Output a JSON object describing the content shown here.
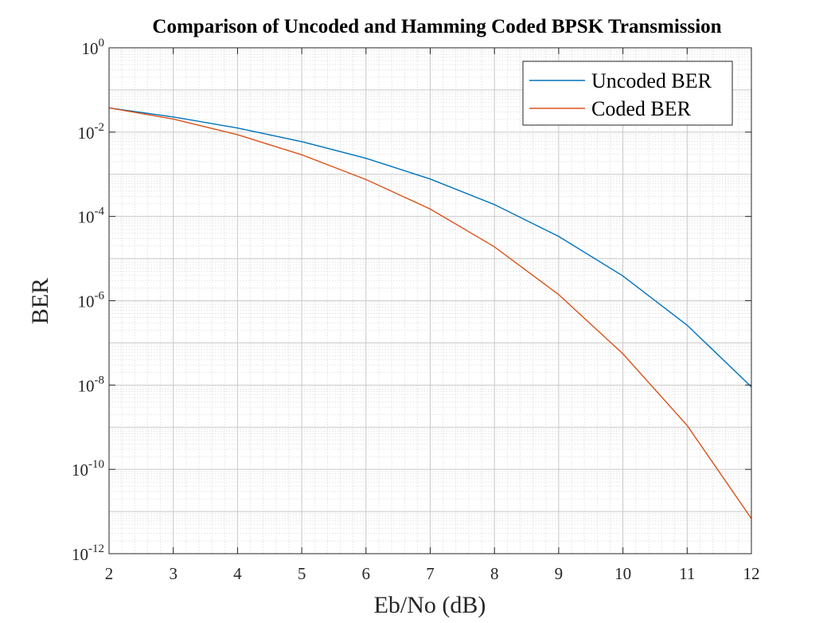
{
  "chart_data": {
    "type": "line",
    "title": "Comparison of Uncoded and Hamming Coded BPSK Transmission",
    "xlabel": "Eb/No (dB)",
    "ylabel": "BER",
    "xlim": [
      2,
      12
    ],
    "ylim_exponent": [
      -12,
      0
    ],
    "y_scale": "log",
    "x_ticks": [
      "2",
      "3",
      "4",
      "5",
      "6",
      "7",
      "8",
      "9",
      "10",
      "11",
      "12"
    ],
    "y_tick_exponents": [
      "0",
      "-2",
      "-4",
      "-6",
      "-8",
      "-10",
      "-12"
    ],
    "y_tick_base": "10",
    "grid": true,
    "minor_grid": true,
    "legend_position": "top-right",
    "x": [
      2,
      3,
      4,
      5,
      6,
      7,
      8,
      9,
      10,
      11,
      12
    ],
    "series": [
      {
        "name": "Uncoded BER",
        "color": "#0072BD",
        "values": [
          0.0375,
          0.0229,
          0.0125,
          0.00595,
          0.00239,
          0.000773,
          0.000191,
          3.36e-05,
          3.87e-06,
          2.62e-07,
          9.07e-09
        ]
      },
      {
        "name": "Coded BER",
        "color": "#D95319",
        "values": [
          0.0375,
          0.0204,
          0.0087,
          0.0029,
          0.00075,
          0.00015,
          1.9e-05,
          1.4e-06,
          5.5e-08,
          1.1e-09,
          6.8e-12
        ]
      }
    ]
  }
}
